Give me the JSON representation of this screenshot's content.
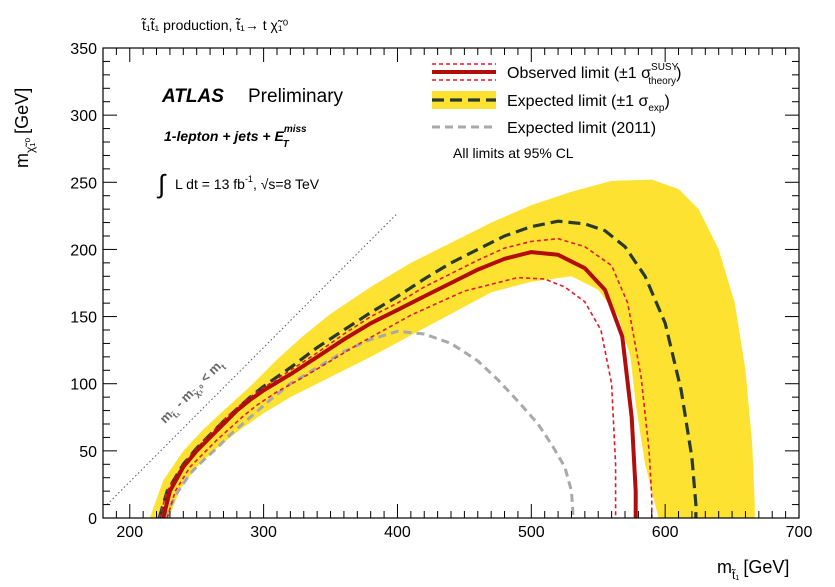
{
  "chart_data": {
    "type": "line",
    "title": "t̃₁t̃₁ production, t̃₁→ t χ̃₁⁰",
    "xlabel": "m",
    "xlabel_sub": "t̃₁",
    "xlabel_unit": "[GeV]",
    "ylabel": "m",
    "ylabel_sub": "χ̃₁⁰",
    "ylabel_unit": "[GeV]",
    "xlim": [
      180,
      700
    ],
    "ylim": [
      0,
      350
    ],
    "xticks": [
      200,
      300,
      400,
      500,
      600,
      700
    ],
    "yticks": [
      0,
      50,
      100,
      150,
      200,
      250,
      300,
      350
    ],
    "grid": false,
    "legend_position": "top-right",
    "annotations": {
      "atlas": "ATLAS",
      "preliminary": "Preliminary",
      "channel_main": "1-lepton + jets + E",
      "channel_sup": "miss",
      "channel_sub": "T",
      "lumi_prefix": "L dt = 13 fb",
      "lumi_exp": "-1",
      "lumi_sep": ", √s=8 TeV",
      "diagonal_label": "m",
      "diagonal_sub1": "t̃₁",
      "diagonal_mid": " - m",
      "diagonal_sub2": "χ̃₁⁰",
      "diagonal_end": " < m",
      "diagonal_sub3": "t",
      "cl_note": "All limits at 95% CL"
    },
    "legend": [
      {
        "label": "Observed limit (±1 σ",
        "sup": "SUSY",
        "sub": "theory",
        "close": ")",
        "style": "observed"
      },
      {
        "label": "Expected limit (±1 σ",
        "sup": "",
        "sub": "exp",
        "close": ")",
        "style": "expected"
      },
      {
        "label": "Expected limit (2011)",
        "sup": "",
        "sub": "",
        "close": "",
        "style": "expected2011"
      }
    ],
    "colors": {
      "observed": "#b10d0d",
      "theory_band": "#e3192a",
      "expected": "#2b3a2e",
      "band": "#fde232",
      "expected2011": "#a9a9a9",
      "diagonal": "#555555"
    },
    "series": [
      {
        "name": "Observed limit",
        "x": [
          225,
          230,
          240,
          250,
          260,
          270,
          280,
          290,
          300,
          320,
          340,
          360,
          380,
          400,
          420,
          440,
          460,
          480,
          500,
          520,
          540,
          555,
          568,
          575,
          578,
          578
        ],
        "y": [
          0,
          20,
          38,
          50,
          60,
          70,
          80,
          88,
          95,
          107,
          120,
          133,
          145,
          155,
          165,
          175,
          185,
          193,
          198,
          196,
          186,
          170,
          135,
          75,
          20,
          0
        ]
      },
      {
        "name": "Observed +1σ theory",
        "x": [
          222,
          228,
          240,
          250,
          260,
          270,
          280,
          290,
          300,
          320,
          340,
          360,
          380,
          400,
          420,
          440,
          460,
          480,
          500,
          520,
          540,
          560,
          572,
          582,
          588,
          590,
          590
        ],
        "y": [
          0,
          20,
          40,
          52,
          62,
          73,
          82,
          90,
          97,
          110,
          123,
          137,
          150,
          160,
          172,
          182,
          192,
          201,
          206,
          208,
          202,
          188,
          160,
          105,
          50,
          15,
          0
        ]
      },
      {
        "name": "Observed -1σ theory",
        "x": [
          228,
          234,
          245,
          255,
          265,
          275,
          285,
          295,
          310,
          330,
          350,
          370,
          390,
          410,
          430,
          450,
          470,
          490,
          510,
          525,
          540,
          552,
          560,
          563,
          563
        ],
        "y": [
          0,
          20,
          38,
          48,
          58,
          67,
          76,
          84,
          94,
          105,
          117,
          129,
          140,
          151,
          160,
          169,
          174,
          179,
          178,
          172,
          161,
          140,
          100,
          40,
          0
        ]
      },
      {
        "name": "Expected limit",
        "x": [
          222,
          228,
          240,
          250,
          260,
          270,
          280,
          290,
          300,
          320,
          340,
          360,
          380,
          400,
          420,
          440,
          460,
          480,
          500,
          520,
          540,
          555,
          570,
          585,
          600,
          612,
          620,
          623,
          623
        ],
        "y": [
          0,
          20,
          40,
          52,
          62,
          72,
          81,
          90,
          98,
          112,
          127,
          140,
          153,
          165,
          178,
          190,
          200,
          210,
          217,
          221,
          219,
          214,
          202,
          180,
          145,
          95,
          45,
          10,
          0
        ]
      },
      {
        "name": "Expected limit (2011)",
        "x": [
          226,
          235,
          245,
          255,
          265,
          275,
          290,
          305,
          320,
          340,
          360,
          380,
          400,
          420,
          440,
          460,
          475,
          490,
          505,
          515,
          525,
          530,
          531,
          531
        ],
        "y": [
          0,
          18,
          33,
          43,
          52,
          62,
          75,
          88,
          100,
          112,
          124,
          133,
          139,
          137,
          130,
          117,
          103,
          87,
          70,
          55,
          38,
          20,
          5,
          0
        ]
      }
    ],
    "band": {
      "name": "Expected limit ±1σ exp",
      "x": [
        215,
        225,
        240,
        255,
        270,
        290,
        310,
        330,
        350,
        380,
        410,
        440,
        470,
        500,
        530,
        560,
        590,
        610,
        625,
        640,
        652,
        660,
        665,
        667,
        667,
        660,
        652,
        640,
        625,
        610,
        595,
        585,
        578,
        574,
        565,
        550,
        530,
        500,
        470,
        440,
        410,
        380,
        350,
        320,
        300,
        280,
        265,
        250,
        238,
        229
      ],
      "y": [
        0,
        28,
        50,
        66,
        80,
        98,
        118,
        136,
        152,
        172,
        190,
        205,
        220,
        233,
        243,
        251,
        252,
        245,
        230,
        200,
        160,
        110,
        55,
        10,
        0,
        0,
        0,
        0,
        0,
        0,
        0,
        40,
        85,
        120,
        150,
        170,
        180,
        176,
        168,
        152,
        136,
        120,
        105,
        90,
        78,
        64,
        52,
        38,
        22,
        0
      ]
    },
    "diagonal": {
      "x": [
        183,
        400
      ],
      "y": [
        10,
        227
      ]
    }
  }
}
